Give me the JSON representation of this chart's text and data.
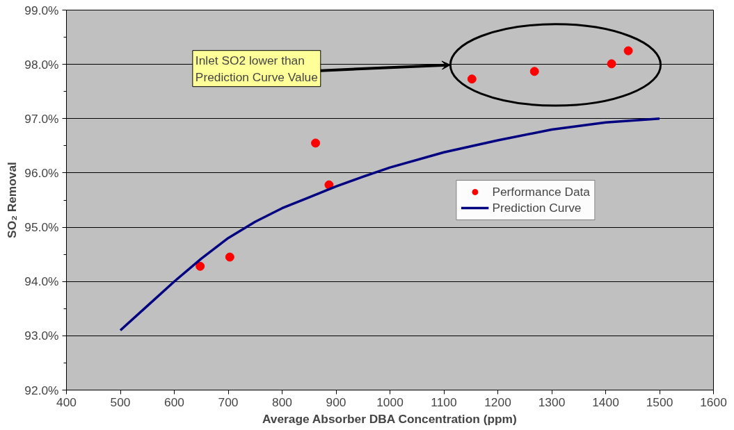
{
  "chart_data": {
    "type": "line",
    "xlabel": "Average Absorber DBA Concentration (ppm)",
    "ylabel": "SO₂ Removal",
    "xlim": [
      400,
      1600
    ],
    "xticks": [
      400,
      500,
      600,
      700,
      800,
      900,
      1000,
      1100,
      1200,
      1300,
      1400,
      1500,
      1600
    ],
    "ylim": [
      92,
      99
    ],
    "yticks": [
      {
        "value": 92,
        "label": "92.0%"
      },
      {
        "value": 93,
        "label": "93.0%"
      },
      {
        "value": 94,
        "label": "94.0%"
      },
      {
        "value": 95,
        "label": "95.0%"
      },
      {
        "value": 96,
        "label": "96.0%"
      },
      {
        "value": 97,
        "label": "97.0%"
      },
      {
        "value": 98,
        "label": "98.0%"
      },
      {
        "value": 99,
        "label": "99.0%"
      }
    ],
    "grid": "y",
    "legend": "right",
    "series": [
      {
        "name": "Performance Data",
        "type": "scatter",
        "marker": "circle",
        "color": "#ff0000",
        "x": [
          648,
          703,
          862,
          887,
          1152,
          1268,
          1411,
          1442
        ],
        "values": [
          94.28,
          94.45,
          96.55,
          95.78,
          97.73,
          97.87,
          98.01,
          98.25
        ]
      },
      {
        "name": "Prediction Curve",
        "color": "#000080",
        "x": [
          500,
          550,
          600,
          650,
          700,
          750,
          800,
          850,
          900,
          950,
          1000,
          1100,
          1200,
          1300,
          1400,
          1500
        ],
        "values": [
          93.1,
          93.55,
          94.0,
          94.42,
          94.8,
          95.1,
          95.35,
          95.55,
          95.75,
          95.93,
          96.1,
          96.38,
          96.6,
          96.8,
          96.93,
          97.0
        ]
      }
    ],
    "annotations": [
      "Inlet SO2 lower than\nPrediction Curve Value"
    ]
  }
}
